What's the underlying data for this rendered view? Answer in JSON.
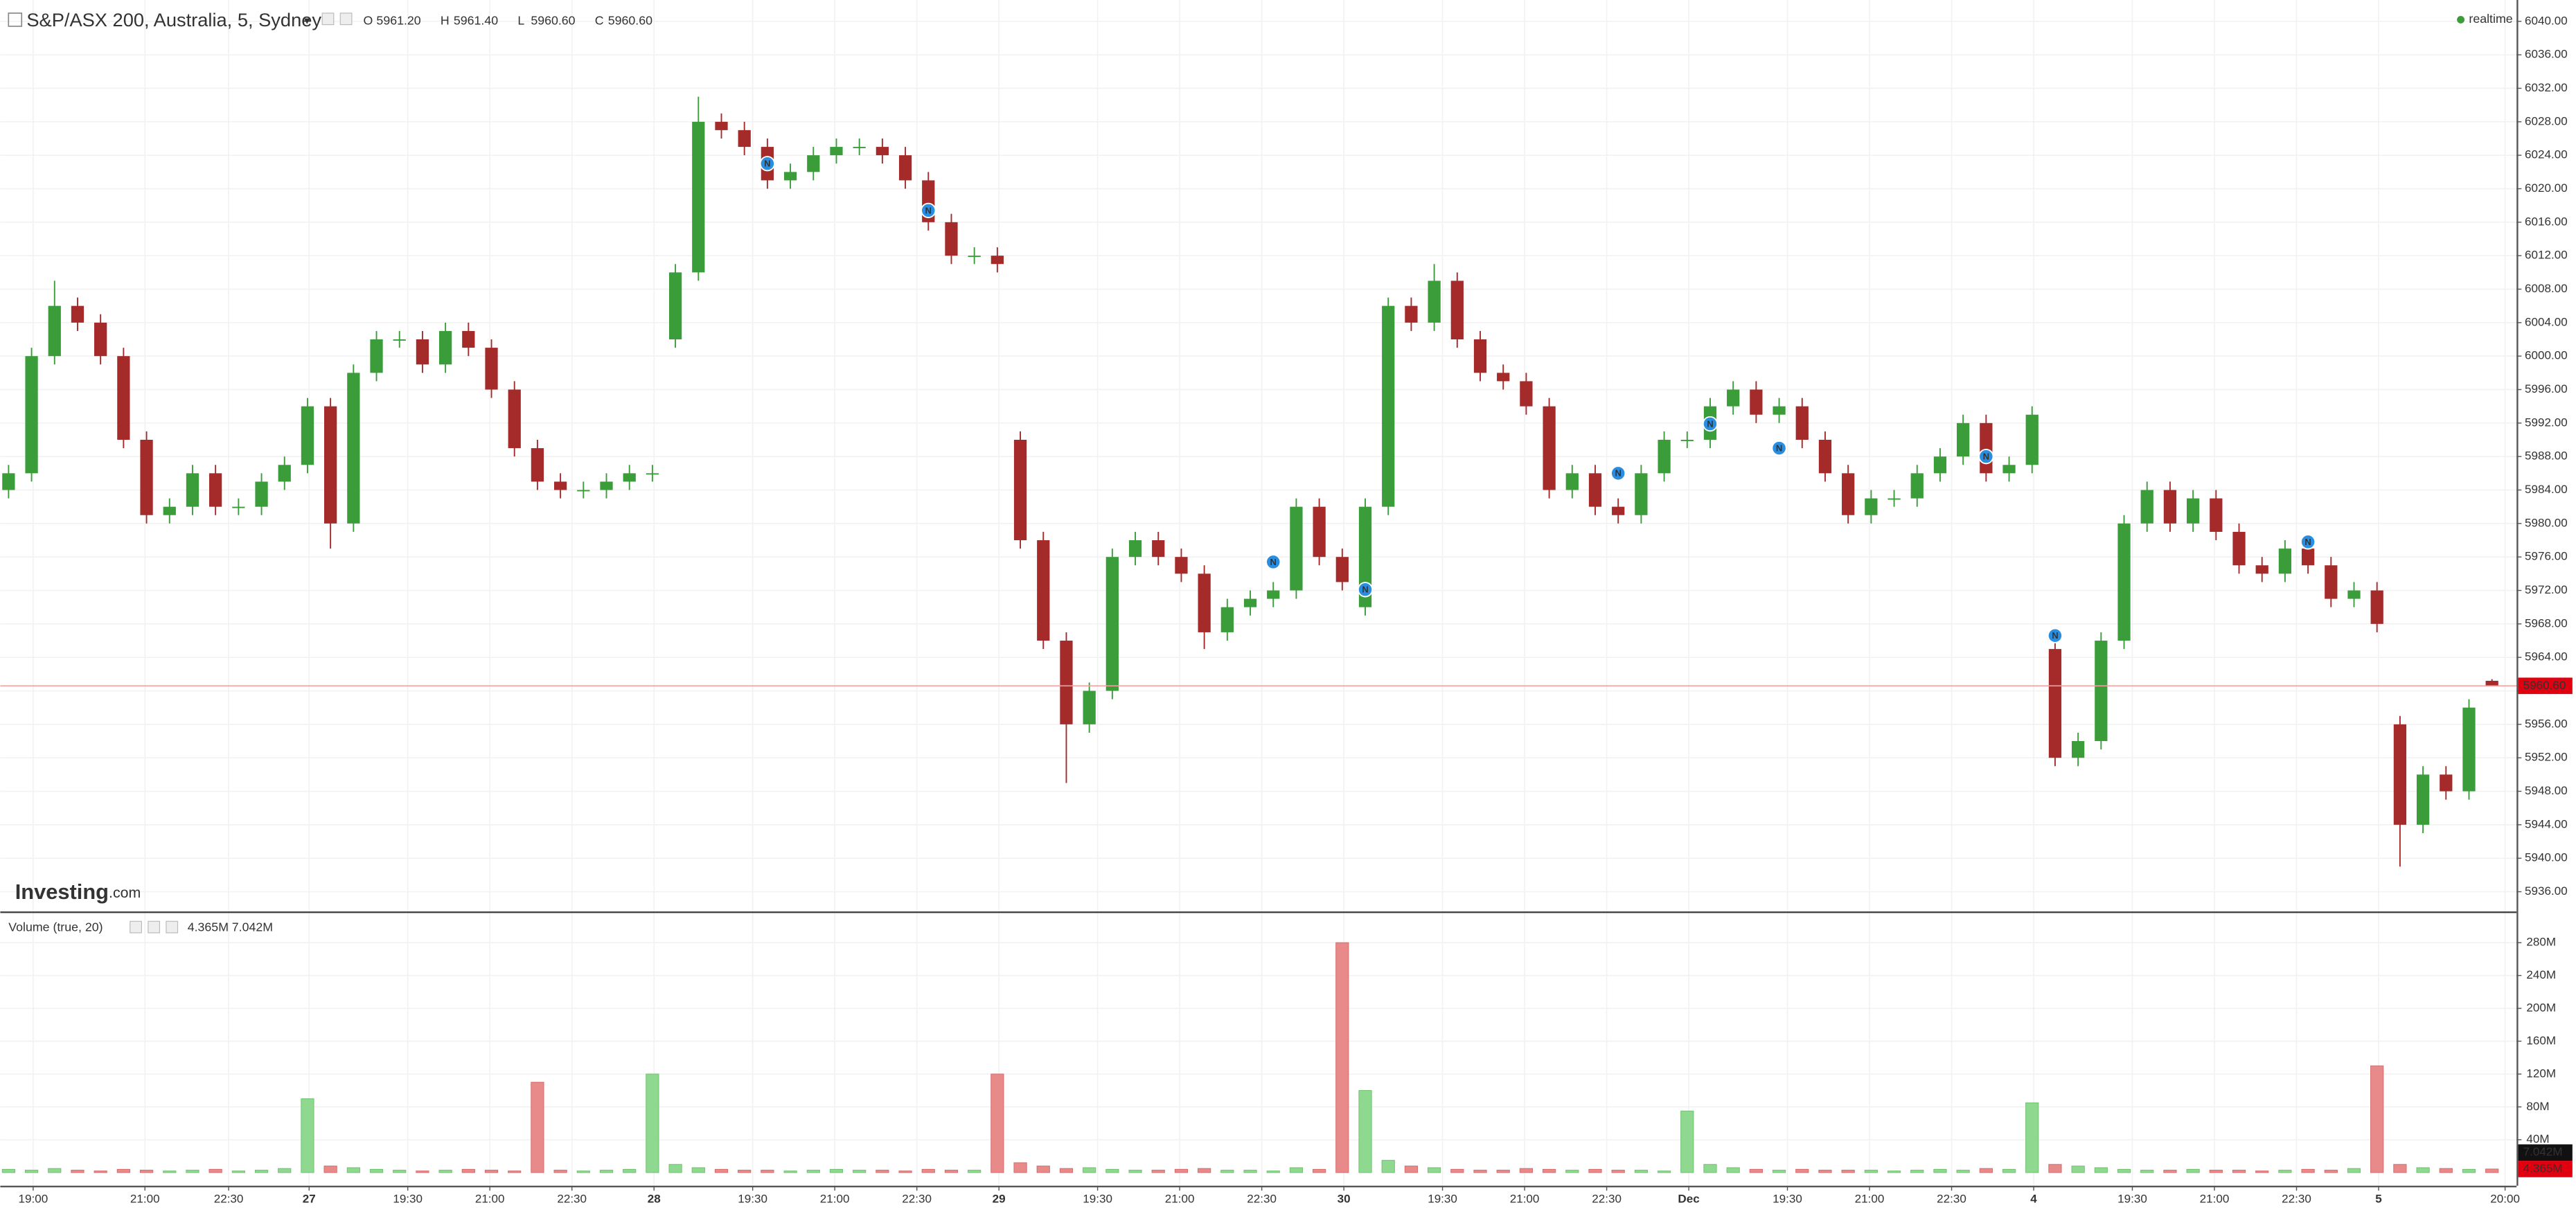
{
  "chart_data": {
    "type": "candlestick",
    "title": "S&P/ASX 200, Australia, 5, Sydney",
    "status": "realtime",
    "watermark": [
      "Investing",
      ".com"
    ],
    "ohlc_labels": [
      "O",
      "H",
      "L",
      "C"
    ],
    "last_values": [
      "5961.20",
      "5961.40",
      "5960.60",
      "5960.60"
    ],
    "last_price_label": "5960.60",
    "up_color": "#3a9d3a",
    "down_color": "#a52a2a",
    "grid": true,
    "open": [
      5984,
      5986,
      6000,
      6006,
      6004,
      6000,
      5990,
      5981,
      5982,
      5986,
      5982,
      5982,
      5985,
      5987,
      5994,
      5980,
      5998,
      6002,
      6002,
      5999,
      6003,
      6001,
      5996,
      5989,
      5985,
      5984,
      5984,
      5985,
      5986,
      6002,
      6010,
      6028,
      6027,
      6025,
      6021,
      6022,
      6024,
      6025,
      6025,
      6024,
      6021,
      6016,
      6012,
      6012,
      5990,
      5978,
      5966,
      5956,
      5960,
      5976,
      5978,
      5976,
      5974,
      5967,
      5970,
      5971,
      5972,
      5982,
      5976,
      5970,
      5982,
      6006,
      6004,
      6009,
      6002,
      5998,
      5997,
      5994,
      5984,
      5986,
      5982,
      5981,
      5986,
      5990,
      5990,
      5994,
      5996,
      5993,
      5994,
      5990,
      5986,
      5981,
      5983,
      5983,
      5986,
      5988,
      5992,
      5986,
      5987,
      5965,
      5952,
      5954,
      5966,
      5980,
      5984,
      5980,
      5983,
      5979,
      5975,
      5974,
      5977,
      5975,
      5971,
      5972,
      5956,
      5944,
      5950,
      5948,
      5961.2
    ],
    "high": [
      5987,
      6001,
      6009,
      6007,
      6005,
      6001,
      5991,
      5983,
      5987,
      5987,
      5983,
      5986,
      5988,
      5995,
      5995,
      5999,
      6003,
      6003,
      6003,
      6004,
      6004,
      6002,
      5997,
      5990,
      5986,
      5985,
      5986,
      5987,
      5987,
      6011,
      6031,
      6029,
      6028,
      6026,
      6023,
      6025,
      6026,
      6026,
      6026,
      6025,
      6022,
      6017,
      6013,
      6013,
      5991,
      5979,
      5967,
      5961,
      5977,
      5979,
      5979,
      5977,
      5975,
      5971,
      5972,
      5973,
      5983,
      5983,
      5977,
      5983,
      6007,
      6007,
      6011,
      6010,
      6003,
      5999,
      5998,
      5995,
      5987,
      5987,
      5983,
      5987,
      5991,
      5991,
      5995,
      5997,
      5997,
      5995,
      5995,
      5991,
      5987,
      5984,
      5984,
      5987,
      5989,
      5993,
      5993,
      5988,
      5994,
      5966,
      5955,
      5967,
      5981,
      5985,
      5985,
      5984,
      5984,
      5980,
      5976,
      5978,
      5978,
      5976,
      5973,
      5973,
      5957,
      5951,
      5951,
      5959,
      5961.4
    ],
    "low": [
      5983,
      5985,
      5999,
      6003,
      5999,
      5989,
      5980,
      5980,
      5981,
      5981,
      5981,
      5981,
      5984,
      5986,
      5977,
      5979,
      5997,
      6001,
      5998,
      5998,
      6000,
      5995,
      5988,
      5984,
      5983,
      5983,
      5983,
      5984,
      5985,
      6001,
      6009,
      6026,
      6024,
      6020,
      6020,
      6021,
      6023,
      6024,
      6023,
      6020,
      6015,
      6011,
      6011,
      6010,
      5977,
      5965,
      5949,
      5955,
      5959,
      5975,
      5975,
      5973,
      5965,
      5966,
      5969,
      5970,
      5971,
      5975,
      5972,
      5969,
      5981,
      6003,
      6003,
      6001,
      5997,
      5996,
      5993,
      5983,
      5983,
      5981,
      5980,
      5980,
      5985,
      5989,
      5989,
      5993,
      5992,
      5992,
      5989,
      5985,
      5980,
      5980,
      5982,
      5982,
      5985,
      5987,
      5985,
      5985,
      5986,
      5951,
      5951,
      5953,
      5965,
      5979,
      5979,
      5979,
      5978,
      5974,
      5973,
      5973,
      5974,
      5970,
      5970,
      5967,
      5939,
      5943,
      5947,
      5947,
      5960.6
    ],
    "close": [
      5986,
      6000,
      6006,
      6004,
      6000,
      5990,
      5981,
      5982,
      5986,
      5982,
      5982,
      5985,
      5987,
      5994,
      5980,
      5998,
      6002,
      6002,
      5999,
      6003,
      6001,
      5996,
      5989,
      5985,
      5984,
      5984,
      5985,
      5986,
      5986,
      6010,
      6028,
      6027,
      6025,
      6021,
      6022,
      6024,
      6025,
      6025,
      6024,
      6021,
      6016,
      6012,
      6012,
      6011,
      5978,
      5966,
      5956,
      5960,
      5976,
      5978,
      5976,
      5974,
      5967,
      5970,
      5971,
      5972,
      5982,
      5976,
      5973,
      5982,
      6006,
      6004,
      6009,
      6002,
      5998,
      5997,
      5994,
      5984,
      5986,
      5982,
      5981,
      5986,
      5990,
      5990,
      5994,
      5996,
      5993,
      5994,
      5990,
      5986,
      5981,
      5983,
      5983,
      5986,
      5988,
      5992,
      5986,
      5987,
      5993,
      5952,
      5954,
      5966,
      5980,
      5984,
      5980,
      5983,
      5979,
      5975,
      5974,
      5977,
      5975,
      5971,
      5972,
      5968,
      5944,
      5950,
      5948,
      5958,
      5960.6
    ],
    "xlim": [
      -0.36,
      109.07
    ],
    "xticks": [
      {
        "value": 1.07,
        "label": "19:00"
      },
      {
        "value": 5.93,
        "label": "21:00"
      },
      {
        "value": 9.57,
        "label": "22:30"
      },
      {
        "value": 13.07,
        "label": "27"
      },
      {
        "value": 17.36,
        "label": "19:30"
      },
      {
        "value": 20.93,
        "label": "21:00"
      },
      {
        "value": 24.5,
        "label": "22:30"
      },
      {
        "value": 28.07,
        "label": "28"
      },
      {
        "value": 32.36,
        "label": "19:30"
      },
      {
        "value": 35.93,
        "label": "21:00"
      },
      {
        "value": 39.5,
        "label": "22:30"
      },
      {
        "value": 43.07,
        "label": "29"
      },
      {
        "value": 47.36,
        "label": "19:30"
      },
      {
        "value": 50.93,
        "label": "21:00"
      },
      {
        "value": 54.5,
        "label": "22:30"
      },
      {
        "value": 58.07,
        "label": "30"
      },
      {
        "value": 62.36,
        "label": "19:30"
      },
      {
        "value": 65.93,
        "label": "21:00"
      },
      {
        "value": 69.5,
        "label": "22:30"
      },
      {
        "value": 73.07,
        "label": "Dec"
      },
      {
        "value": 77.36,
        "label": "19:30"
      },
      {
        "value": 80.93,
        "label": "21:00"
      },
      {
        "value": 84.5,
        "label": "22:30"
      },
      {
        "value": 88.07,
        "label": "4"
      },
      {
        "value": 92.36,
        "label": "19:30"
      },
      {
        "value": 95.93,
        "label": "21:00"
      },
      {
        "value": 99.5,
        "label": "22:30"
      },
      {
        "value": 103.07,
        "label": "5"
      },
      {
        "value": 108.57,
        "label": "20:00"
      }
    ],
    "ylim": [
      5933.64,
      6042.55
    ],
    "yticks": [
      {
        "value": 6040,
        "label": "6040.00"
      },
      {
        "value": 6036,
        "label": "6036.00"
      },
      {
        "value": 6032,
        "label": "6032.00"
      },
      {
        "value": 6028,
        "label": "6028.00"
      },
      {
        "value": 6024,
        "label": "6024.00"
      },
      {
        "value": 6020,
        "label": "6020.00"
      },
      {
        "value": 6016,
        "label": "6016.00"
      },
      {
        "value": 6012,
        "label": "6012.00"
      },
      {
        "value": 6008,
        "label": "6008.00"
      },
      {
        "value": 6004,
        "label": "6004.00"
      },
      {
        "value": 6000,
        "label": "6000.00"
      },
      {
        "value": 5996,
        "label": "5996.00"
      },
      {
        "value": 5992,
        "label": "5992.00"
      },
      {
        "value": 5988,
        "label": "5988.00"
      },
      {
        "value": 5984,
        "label": "5984.00"
      },
      {
        "value": 5980,
        "label": "5980.00"
      },
      {
        "value": 5976,
        "label": "5976.00"
      },
      {
        "value": 5972,
        "label": "5972.00"
      },
      {
        "value": 5968,
        "label": "5968.00"
      },
      {
        "value": 5964,
        "label": "5964.00"
      },
      {
        "value": 5960,
        "label": "5960.00"
      },
      {
        "value": 5956,
        "label": "5956.00"
      },
      {
        "value": 5952,
        "label": "5952.00"
      },
      {
        "value": 5948,
        "label": "5948.00"
      },
      {
        "value": 5944,
        "label": "5944.00"
      },
      {
        "value": 5940,
        "label": "5940.00"
      },
      {
        "value": 5936,
        "label": "5936.00"
      }
    ],
    "events": [
      {
        "label": "N",
        "index": 33,
        "price": 6023
      },
      {
        "label": "N",
        "index": 40,
        "price": 6017.4
      },
      {
        "label": "N",
        "index": 55,
        "price": 5975.4
      },
      {
        "label": "N",
        "index": 59,
        "price": 5972.1
      },
      {
        "label": "N",
        "index": 70,
        "price": 5986
      },
      {
        "label": "N",
        "index": 74,
        "price": 5991.9
      },
      {
        "label": "N",
        "index": 77,
        "price": 5989
      },
      {
        "label": "N",
        "index": 86,
        "price": 5988
      },
      {
        "label": "N",
        "index": 89,
        "price": 5966.6
      },
      {
        "label": "N",
        "index": 100,
        "price": 5977.8
      }
    ],
    "volume": {
      "title": "Volume (true, 20)",
      "legend": [
        "4.365M",
        "7.042M"
      ],
      "up_color": "#8fd88f",
      "down_color": "#e88a8a",
      "values": [
        4,
        3,
        5,
        3,
        2,
        4,
        3,
        2,
        3,
        4,
        2,
        3,
        5,
        90,
        8,
        6,
        4,
        3,
        2,
        3,
        4,
        3,
        2,
        110,
        3,
        2,
        3,
        4,
        120,
        10,
        6,
        4,
        3,
        3,
        2,
        3,
        4,
        3,
        3,
        2,
        4,
        3,
        3,
        120,
        12,
        8,
        5,
        6,
        4,
        3,
        3,
        4,
        5,
        3,
        3,
        2,
        6,
        4,
        280,
        100,
        15,
        8,
        6,
        4,
        3,
        3,
        5,
        4,
        3,
        4,
        3,
        3,
        2,
        75,
        10,
        6,
        4,
        3,
        4,
        3,
        3,
        3,
        2,
        3,
        4,
        3,
        5,
        4,
        85,
        10,
        8,
        6,
        4,
        3,
        3,
        4,
        3,
        3,
        2,
        3,
        4,
        3,
        5,
        130,
        10,
        6,
        5,
        4,
        4.365
      ],
      "ylim": [
        -16,
        318
      ],
      "yticks": [
        {
          "value": 40,
          "label": "40M"
        },
        {
          "value": 80,
          "label": "80M"
        },
        {
          "value": 120,
          "label": "120M"
        },
        {
          "value": 160,
          "label": "160M"
        },
        {
          "value": 200,
          "label": "200M"
        },
        {
          "value": 240,
          "label": "240M"
        },
        {
          "value": 280,
          "label": "280M"
        }
      ]
    }
  }
}
